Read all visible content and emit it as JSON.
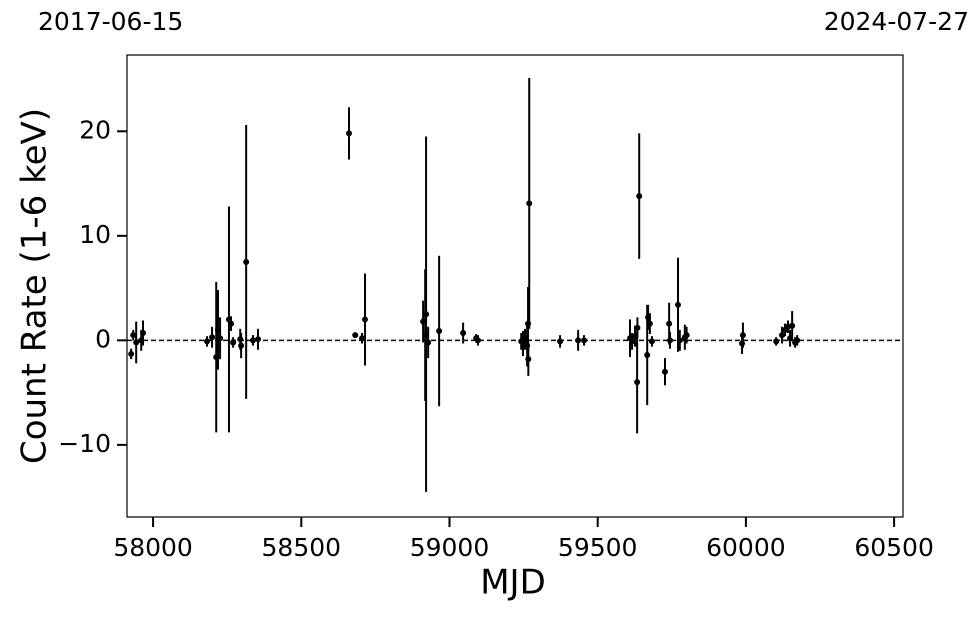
{
  "chart_data": {
    "type": "errorbar",
    "x_label": "MJD",
    "y_label": "Count Rate (1-6 keV)",
    "top_left_label": "2017-06-15",
    "top_right_label": "2024-07-27",
    "xlim": [
      57912,
      60530
    ],
    "ylim": [
      -16.9,
      27.3
    ],
    "xticks": [
      58000,
      58500,
      59000,
      59500,
      60000,
      60500
    ],
    "yticks": [
      {
        "value": -10,
        "label": "−10"
      },
      0,
      10,
      20
    ],
    "reference_line": 0,
    "series": [
      {
        "color": "#000000",
        "x": [
          57926,
          57933,
          57943,
          57960,
          57966,
          58182,
          58199,
          58213,
          58219,
          58226,
          58256,
          58263,
          58270,
          58294,
          58297,
          58314,
          58337,
          58354,
          58661,
          58682,
          58705,
          58715,
          58911,
          58918,
          58921,
          58928,
          58965,
          59046,
          59090,
          59096,
          59242,
          59248,
          59255,
          59262,
          59265,
          59269,
          59266,
          59373,
          59434,
          59454,
          59609,
          59616,
          59626,
          59633,
          59634,
          59640,
          59667,
          59670,
          59676,
          59683,
          59727,
          59741,
          59744,
          59771,
          59777,
          59794,
          59800,
          59987,
          59990,
          60102,
          60122,
          60132,
          60142,
          60149,
          60156,
          60166,
          60173
        ],
        "values": [
          -1.3,
          0.5,
          -0.2,
          0,
          0.7,
          -0.1,
          0.3,
          -1.6,
          1.0,
          0.2,
          2.0,
          1.6,
          -0.2,
          0.1,
          -0.5,
          7.5,
          0,
          0.1,
          19.8,
          0.5,
          0.2,
          2.0,
          1.8,
          0.5,
          2.5,
          -0.2,
          0.9,
          0.7,
          0.2,
          0,
          -0.1,
          -0.3,
          0.1,
          -0.5,
          1.6,
          13.1,
          -1.8,
          -0.1,
          0,
          0,
          0.2,
          -0.1,
          0.4,
          -4.0,
          1.2,
          13.8,
          -1.4,
          2.2,
          1.6,
          -0.1,
          -3.0,
          1.6,
          0,
          3.4,
          0,
          0.3,
          0.5,
          -0.3,
          0.5,
          -0.1,
          0.5,
          1.0,
          1.3,
          0.2,
          1.4,
          -0.2,
          0
        ],
        "errors": [
          0.5,
          0.5,
          2,
          1,
          1.2,
          0.5,
          1,
          7.2,
          3.8,
          2,
          10.8,
          0.7,
          0.5,
          1,
          1.2,
          13.1,
          0.5,
          1,
          2.5,
          0.2,
          0.5,
          4.4,
          2,
          6.3,
          17,
          1.5,
          7.2,
          1,
          0.4,
          0.5,
          0.8,
          1.2,
          1,
          2,
          3.5,
          12,
          1.6,
          0.6,
          1,
          0.5,
          1.8,
          0.8,
          1,
          4.9,
          1,
          6,
          4.8,
          1.2,
          1,
          0.5,
          1.3,
          2,
          0.8,
          4.5,
          1,
          1.2,
          0.8,
          1,
          1.2,
          0.4,
          0.8,
          0.6,
          0.6,
          0.8,
          1.4,
          0.5,
          0.5
        ]
      }
    ]
  }
}
